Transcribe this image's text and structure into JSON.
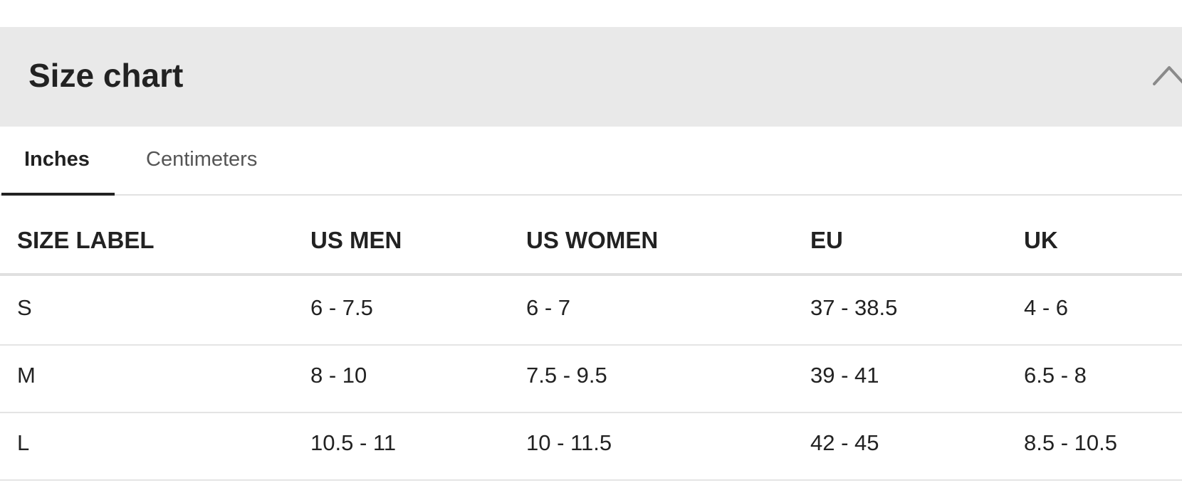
{
  "header": {
    "title": "Size chart"
  },
  "tabs": [
    "Inches",
    "Centimeters"
  ],
  "table": {
    "columns": [
      "SIZE LABEL",
      "US MEN",
      "US WOMEN",
      "EU",
      "UK"
    ],
    "rows": [
      [
        "S",
        "6 - 7.5",
        "6 - 7",
        "37 - 38.5",
        "4 - 6"
      ],
      [
        "M",
        "8 - 10",
        "7.5 - 9.5",
        "39 - 41",
        "6.5 - 8"
      ],
      [
        "L",
        "10.5 - 11",
        "10 - 11.5",
        "42 - 45",
        "8.5 - 10.5"
      ]
    ]
  }
}
